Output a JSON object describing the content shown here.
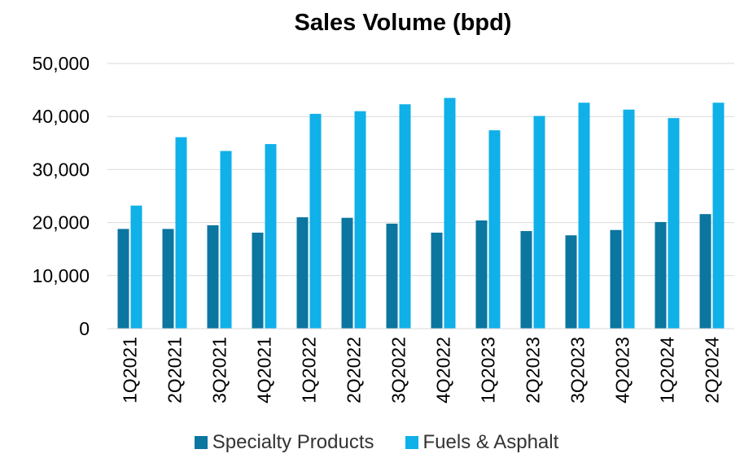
{
  "chart_data": {
    "type": "bar",
    "title": "Sales Volume (bpd)",
    "xlabel": "",
    "ylabel": "",
    "ylim": [
      0,
      50000
    ],
    "yticks": [
      "0",
      "10,000",
      "20,000",
      "30,000",
      "40,000",
      "50,000"
    ],
    "grid": true,
    "legend_position": "bottom",
    "categories": [
      "1Q2021",
      "2Q2021",
      "3Q2021",
      "4Q2021",
      "1Q2022",
      "2Q2022",
      "3Q2022",
      "4Q2022",
      "1Q2023",
      "2Q2023",
      "3Q2023",
      "4Q2023",
      "1Q2024",
      "2Q2024"
    ],
    "series": [
      {
        "name": "Specialty Products",
        "color": "#0B769F",
        "values": [
          18800,
          18800,
          19500,
          18100,
          21000,
          20900,
          19800,
          18100,
          20400,
          18400,
          17600,
          18600,
          20100,
          21600
        ]
      },
      {
        "name": "Fuels & Asphalt",
        "color": "#10B0E8",
        "values": [
          23200,
          36100,
          33500,
          34800,
          40500,
          41000,
          42300,
          43500,
          37400,
          40100,
          42600,
          41300,
          39700,
          42600
        ]
      }
    ]
  }
}
